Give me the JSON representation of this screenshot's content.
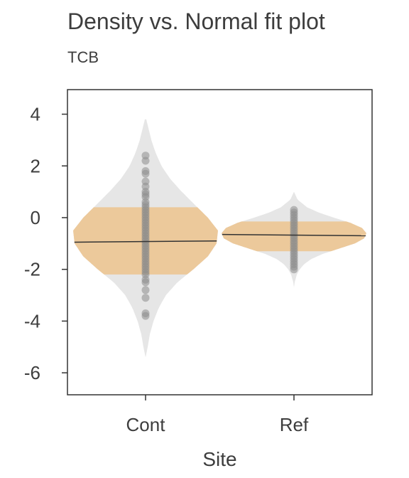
{
  "chart_data": {
    "type": "violin",
    "title": "Density vs. Normal fit plot",
    "subtitle": "TCB",
    "xlabel": "Site",
    "ylabel": "",
    "categories": [
      "Cont",
      "Ref"
    ],
    "ylim": [
      -6.85,
      4.95
    ],
    "yticks": [
      4,
      2,
      0,
      -2,
      -4,
      -6
    ],
    "ytick_labels": [
      "4",
      "2",
      "0",
      "-2",
      "-4",
      "-6"
    ],
    "grid": false,
    "legend": "none",
    "colors": {
      "density": "#e6e6e6",
      "normal_fit": "#ecc99b",
      "points": "#8c8c8c",
      "median": "#333333",
      "axis": "#333333"
    },
    "groups": [
      {
        "name": "Cont",
        "median": -0.95,
        "normal_band": [
          -2.2,
          0.4
        ],
        "normal_mean": -0.9,
        "normal_sd": 0.65,
        "density_range": [
          -5.4,
          3.8
        ],
        "density_profile": [
          [
            3.8,
            0.01
          ],
          [
            3.0,
            0.08
          ],
          [
            2.5,
            0.14
          ],
          [
            2.0,
            0.22
          ],
          [
            1.5,
            0.34
          ],
          [
            1.0,
            0.5
          ],
          [
            0.5,
            0.68
          ],
          [
            0.0,
            0.86
          ],
          [
            -0.5,
            1.0
          ],
          [
            -1.0,
            0.98
          ],
          [
            -1.5,
            0.86
          ],
          [
            -2.0,
            0.66
          ],
          [
            -2.5,
            0.44
          ],
          [
            -3.0,
            0.28
          ],
          [
            -3.5,
            0.18
          ],
          [
            -4.0,
            0.11
          ],
          [
            -4.5,
            0.06
          ],
          [
            -5.0,
            0.03
          ],
          [
            -5.4,
            0.0
          ]
        ],
        "points": [
          2.4,
          2.2,
          1.8,
          1.7,
          1.4,
          1.2,
          1.0,
          0.9,
          0.8,
          0.6,
          0.5,
          0.4,
          0.3,
          0.2,
          0.1,
          0.0,
          -0.1,
          -0.2,
          -0.3,
          -0.4,
          -0.5,
          -0.6,
          -0.7,
          -0.8,
          -0.9,
          -1.0,
          -1.1,
          -1.2,
          -1.3,
          -1.4,
          -1.5,
          -1.6,
          -1.7,
          -1.8,
          -1.9,
          -2.0,
          -2.1,
          -2.2,
          -2.4,
          -2.5,
          -2.8,
          -3.1,
          -3.7,
          -3.8
        ]
      },
      {
        "name": "Ref",
        "median": -0.65,
        "normal_band": [
          -1.3,
          -0.15
        ],
        "normal_mean": -0.7,
        "normal_sd": 0.32,
        "density_range": [
          -2.7,
          1.0
        ],
        "density_profile": [
          [
            1.0,
            0.0
          ],
          [
            0.7,
            0.05
          ],
          [
            0.4,
            0.18
          ],
          [
            0.2,
            0.34
          ],
          [
            0.0,
            0.55
          ],
          [
            -0.2,
            0.78
          ],
          [
            -0.4,
            0.94
          ],
          [
            -0.6,
            1.0
          ],
          [
            -0.8,
            0.97
          ],
          [
            -1.0,
            0.84
          ],
          [
            -1.2,
            0.62
          ],
          [
            -1.4,
            0.4
          ],
          [
            -1.6,
            0.24
          ],
          [
            -1.8,
            0.14
          ],
          [
            -2.0,
            0.08
          ],
          [
            -2.2,
            0.04
          ],
          [
            -2.5,
            0.01
          ],
          [
            -2.7,
            0.0
          ]
        ],
        "points": [
          0.3,
          0.2,
          0.1,
          0.0,
          -0.1,
          -0.2,
          -0.3,
          -0.4,
          -0.5,
          -0.6,
          -0.7,
          -0.8,
          -0.9,
          -1.0,
          -1.1,
          -1.2,
          -1.3,
          -1.4,
          -1.5,
          -1.6,
          -1.7,
          -1.8,
          -1.9,
          -2.0
        ]
      }
    ]
  }
}
